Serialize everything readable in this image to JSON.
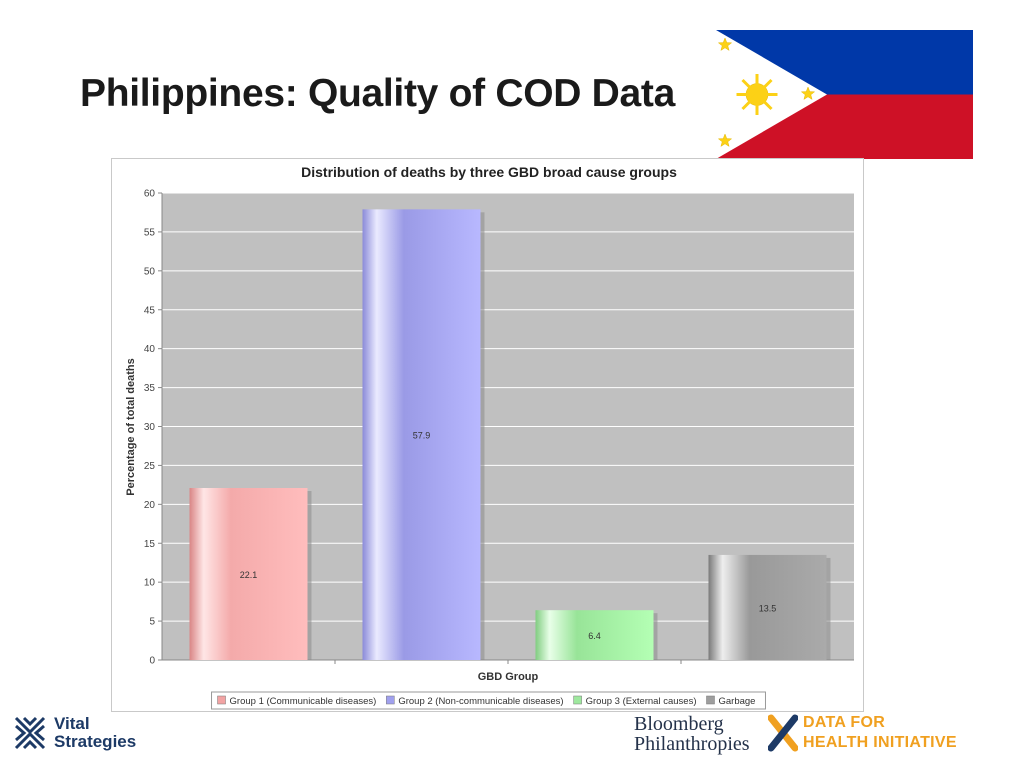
{
  "slide": {
    "title": "Philippines: Quality of COD Data"
  },
  "colors": {
    "flag_blue": "#0038a8",
    "flag_red": "#ce1126",
    "flag_white": "#ffffff",
    "flag_gold": "#fcd116",
    "plot_background": "#c0c0c0",
    "group1": "#f2a3a3",
    "group2": "#a0a0ee",
    "group3": "#9ee89e",
    "garbage": "#9e9e9e"
  },
  "chart_data": {
    "type": "bar",
    "title": "Distribution of deaths by three GBD broad cause groups",
    "xlabel": "GBD Group",
    "ylabel": "Percentage of total deaths",
    "ylim": [
      0,
      60
    ],
    "yticks": [
      0,
      5,
      10,
      15,
      20,
      25,
      30,
      35,
      40,
      45,
      50,
      55,
      60
    ],
    "grid": true,
    "legend_position": "bottom",
    "series": [
      {
        "name": "Group 1 (Communicable diseases)",
        "value": 22.1,
        "label": "22.1",
        "color": "#f2a3a3"
      },
      {
        "name": "Group 2 (Non-communicable diseases)",
        "value": 57.9,
        "label": "57.9",
        "color": "#a0a0ee"
      },
      {
        "name": "Group 3 (External causes)",
        "value": 6.4,
        "label": "6.4",
        "color": "#9ee89e"
      },
      {
        "name": "Garbage",
        "value": 13.5,
        "label": "13.5",
        "color": "#9e9e9e"
      }
    ]
  },
  "footer": {
    "vital_line1": "Vital",
    "vital_line2": "Strategies",
    "bloomberg_line1": "Bloomberg",
    "bloomberg_line2": "Philanthropies",
    "dhi_line1": "DATA FOR",
    "dhi_line2": "HEALTH INITIATIVE"
  }
}
